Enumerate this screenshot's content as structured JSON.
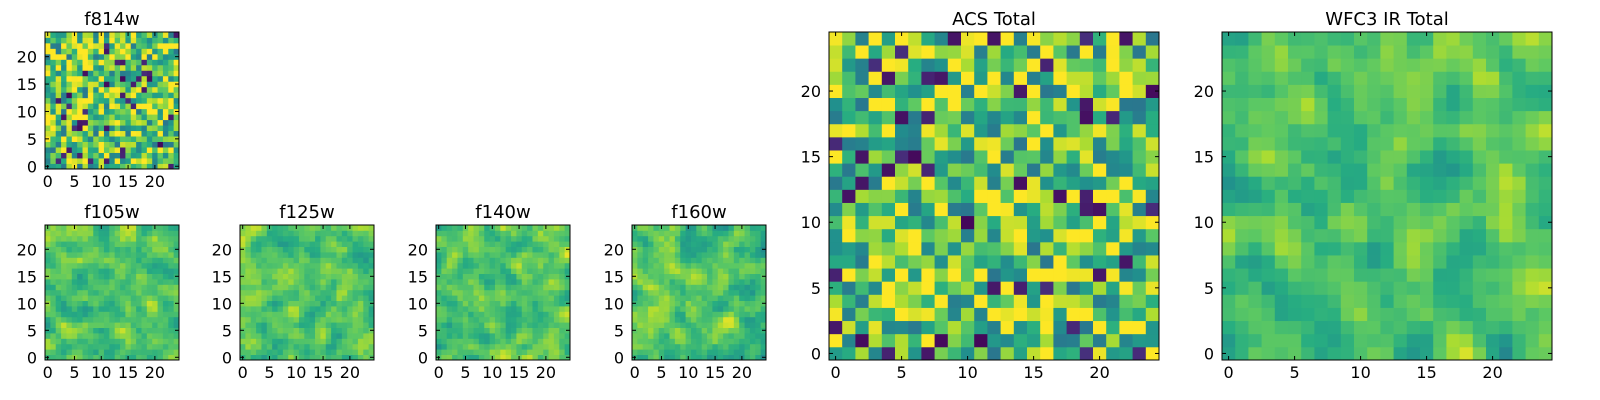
{
  "chart_data": [
    {
      "type": "heatmap",
      "title": "f814w",
      "xticks": [
        "0",
        "5",
        "10",
        "15",
        "20"
      ],
      "yticks": [
        "0",
        "5",
        "10",
        "15",
        "20"
      ],
      "xlim": [
        -0.5,
        24.5
      ],
      "ylim": [
        -0.5,
        24.5
      ],
      "grid_size": [
        25,
        25
      ],
      "colormap": "viridis",
      "color_range": [
        0,
        1
      ],
      "values": null,
      "seed": 11
    },
    {
      "type": "heatmap",
      "title": "f105w",
      "xticks": [
        "0",
        "5",
        "10",
        "15",
        "20"
      ],
      "yticks": [
        "0",
        "5",
        "10",
        "15",
        "20"
      ],
      "xlim": [
        -0.5,
        24.5
      ],
      "ylim": [
        -0.5,
        24.5
      ],
      "grid_size": [
        25,
        25
      ],
      "colormap": "viridis",
      "color_range": [
        0,
        1
      ],
      "values": null,
      "seed": 23
    },
    {
      "type": "heatmap",
      "title": "f125w",
      "xticks": [
        "0",
        "5",
        "10",
        "15",
        "20"
      ],
      "yticks": [
        "0",
        "5",
        "10",
        "15",
        "20"
      ],
      "xlim": [
        -0.5,
        24.5
      ],
      "ylim": [
        -0.5,
        24.5
      ],
      "grid_size": [
        25,
        25
      ],
      "colormap": "viridis",
      "color_range": [
        0,
        1
      ],
      "values": null,
      "seed": 37
    },
    {
      "type": "heatmap",
      "title": "f140w",
      "xticks": [
        "0",
        "5",
        "10",
        "15",
        "20"
      ],
      "yticks": [
        "0",
        "5",
        "10",
        "15",
        "20"
      ],
      "xlim": [
        -0.5,
        24.5
      ],
      "ylim": [
        -0.5,
        24.5
      ],
      "grid_size": [
        25,
        25
      ],
      "colormap": "viridis",
      "color_range": [
        0,
        1
      ],
      "values": null,
      "seed": 41
    },
    {
      "type": "heatmap",
      "title": "f160w",
      "xticks": [
        "0",
        "5",
        "10",
        "15",
        "20"
      ],
      "yticks": [
        "0",
        "5",
        "10",
        "15",
        "20"
      ],
      "xlim": [
        -0.5,
        24.5
      ],
      "ylim": [
        -0.5,
        24.5
      ],
      "grid_size": [
        25,
        25
      ],
      "colormap": "viridis",
      "color_range": [
        0,
        1
      ],
      "values": null,
      "seed": 53
    },
    {
      "type": "heatmap",
      "title": "ACS Total",
      "xticks": [
        "0",
        "5",
        "10",
        "15",
        "20"
      ],
      "yticks": [
        "0",
        "5",
        "10",
        "15",
        "20"
      ],
      "xlim": [
        -0.5,
        24.5
      ],
      "ylim": [
        -0.5,
        24.5
      ],
      "grid_size": [
        25,
        25
      ],
      "colormap": "viridis",
      "color_range": [
        0,
        1
      ],
      "values": null,
      "seed": 67
    },
    {
      "type": "heatmap",
      "title": "WFC3 IR Total",
      "xticks": [
        "0",
        "5",
        "10",
        "15",
        "20"
      ],
      "yticks": [
        "0",
        "5",
        "10",
        "15",
        "20"
      ],
      "xlim": [
        -0.5,
        24.5
      ],
      "ylim": [
        -0.5,
        24.5
      ],
      "grid_size": [
        25,
        25
      ],
      "colormap": "viridis",
      "color_range": [
        0,
        1
      ],
      "values": null,
      "seed": 79
    }
  ]
}
